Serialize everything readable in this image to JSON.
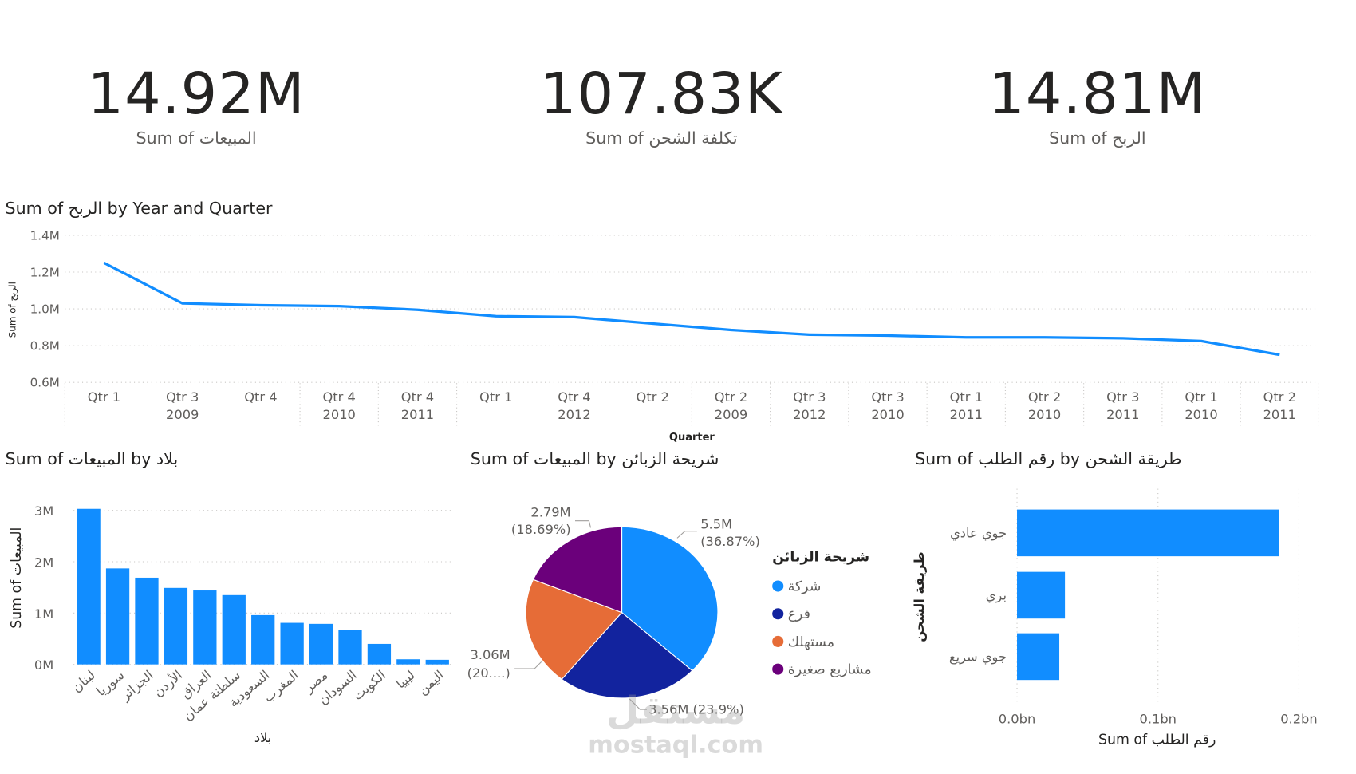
{
  "kpis": [
    {
      "value": "14.92M",
      "label": "Sum of المبيعات"
    },
    {
      "value": "107.83K",
      "label": "Sum of تكلفة الشحن"
    },
    {
      "value": "14.81M",
      "label": "Sum of الربح"
    }
  ],
  "colors": {
    "primary": "#118dff",
    "dark_blue": "#12239e",
    "orange": "#e66c37",
    "purple": "#6b007b"
  },
  "watermark": {
    "arabic": "مستقل",
    "latin": "mostaql.com"
  },
  "chart_data": [
    {
      "type": "line",
      "title": "Sum of الربح by Year and Quarter",
      "xlabel": "Quarter",
      "ylabel": "Sum of الربح",
      "ylim": [
        0.6,
        1.4
      ],
      "yticks": [
        "1.4M",
        "1.2M",
        "1.0M",
        "0.8M",
        "0.6M"
      ],
      "ytick_values": [
        1.4,
        1.2,
        1.0,
        0.8,
        0.6
      ],
      "grid": true,
      "categories": [
        {
          "q": "Qtr 1",
          "year": "2009"
        },
        {
          "q": "Qtr 3",
          "year": "2009"
        },
        {
          "q": "Qtr 4",
          "year": "2009"
        },
        {
          "q": "Qtr 4",
          "year": "2010"
        },
        {
          "q": "Qtr 4",
          "year": "2011"
        },
        {
          "q": "Qtr 1",
          "year": "2012"
        },
        {
          "q": "Qtr 4",
          "year": "2012"
        },
        {
          "q": "Qtr 2",
          "year": "2012"
        },
        {
          "q": "Qtr 2",
          "year": "2009"
        },
        {
          "q": "Qtr 3",
          "year": "2012"
        },
        {
          "q": "Qtr 3",
          "year": "2010"
        },
        {
          "q": "Qtr 1",
          "year": "2011"
        },
        {
          "q": "Qtr 2",
          "year": "2010"
        },
        {
          "q": "Qtr 3",
          "year": "2011"
        },
        {
          "q": "Qtr 1",
          "year": "2010"
        },
        {
          "q": "Qtr 2",
          "year": "2011"
        }
      ],
      "values": [
        1.25,
        1.03,
        1.02,
        1.015,
        0.995,
        0.96,
        0.955,
        0.92,
        0.885,
        0.86,
        0.855,
        0.845,
        0.845,
        0.84,
        0.825,
        0.75
      ]
    },
    {
      "type": "bar",
      "title": "Sum of المبيعات by بلاد",
      "xlabel": "بلاد",
      "ylabel": "Sum of المبيعات",
      "ylim": [
        0,
        3
      ],
      "yticks": [
        "3M",
        "2M",
        "1M",
        "0M"
      ],
      "ytick_values": [
        3,
        2,
        1,
        0
      ],
      "categories": [
        "لبنان",
        "سوريا",
        "الجزائر",
        "الأردن",
        "العراق",
        "سلطنة عمان",
        "السعودية",
        "المغرب",
        "مصر",
        "السودان",
        "الكويت",
        "ليبيا",
        "اليمن"
      ],
      "values": [
        3.03,
        1.87,
        1.69,
        1.49,
        1.44,
        1.35,
        0.96,
        0.81,
        0.79,
        0.67,
        0.4,
        0.1,
        0.09
      ]
    },
    {
      "type": "pie",
      "title": "Sum of المبيعات by شريحة الزبائن",
      "legend_title": "شريحة الزبائن",
      "legend_placement": "right",
      "slices": [
        {
          "name": "شركة",
          "value": 5.5,
          "label": "5.5M",
          "pct": "(36.87%)",
          "color": "#118dff"
        },
        {
          "name": "فرع",
          "value": 3.56,
          "label": "3.56M (23.9%)",
          "pct": "",
          "color": "#12239e"
        },
        {
          "name": "مستهلك",
          "value": 3.06,
          "label": "3.06M",
          "pct": "(20....)",
          "color": "#e66c37"
        },
        {
          "name": "مشاريع صغيرة",
          "value": 2.79,
          "label": "2.79M",
          "pct": "(18.69%)",
          "color": "#6b007b"
        }
      ]
    },
    {
      "type": "bar",
      "orientation": "horizontal",
      "title": "Sum of رقم الطلب by طريقة الشحن",
      "xlabel": "Sum of رقم الطلب",
      "ylabel": "طريقة الشحن",
      "xlim": [
        0,
        0.2
      ],
      "xticks": [
        "0.0bn",
        "0.1bn",
        "0.2bn"
      ],
      "xtick_values": [
        0,
        0.1,
        0.2
      ],
      "categories": [
        "جوي عادي",
        "بري",
        "جوي سريع"
      ],
      "values": [
        0.186,
        0.034,
        0.03
      ]
    }
  ]
}
